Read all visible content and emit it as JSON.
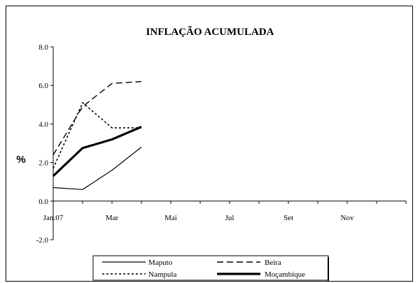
{
  "chart_data": {
    "type": "line",
    "title": "INFLAÇÃO ACUMULADA",
    "ylabel": "%",
    "xlabel": "",
    "x_tick_labels": [
      "Jan.07",
      "Mar",
      "Mai",
      "Jul",
      "Set",
      "Nov"
    ],
    "y_ticks": [
      -2.0,
      0.0,
      2.0,
      4.0,
      6.0,
      8.0
    ],
    "y_tick_labels": [
      "-2.0",
      "0.0",
      "2.0",
      "4.0",
      "6.0",
      "8.0"
    ],
    "ylim": [
      -2.0,
      8.0
    ],
    "x_categories": 12,
    "grid": false,
    "legend_position": "bottom",
    "series": [
      {
        "name": "Maputo",
        "values": [
          0.7,
          0.6,
          1.6,
          2.8
        ],
        "style": "solid",
        "color": "#000000"
      },
      {
        "name": "Beira",
        "values": [
          2.4,
          4.9,
          6.1,
          6.2
        ],
        "style": "dashed",
        "color": "#000000"
      },
      {
        "name": "Nampula",
        "values": [
          1.7,
          5.1,
          3.8,
          3.8
        ],
        "style": "dotted",
        "color": "#000000"
      },
      {
        "name": "Moçambique",
        "values": [
          1.3,
          2.75,
          3.2,
          3.85
        ],
        "style": "thick",
        "color": "#000000"
      }
    ]
  }
}
